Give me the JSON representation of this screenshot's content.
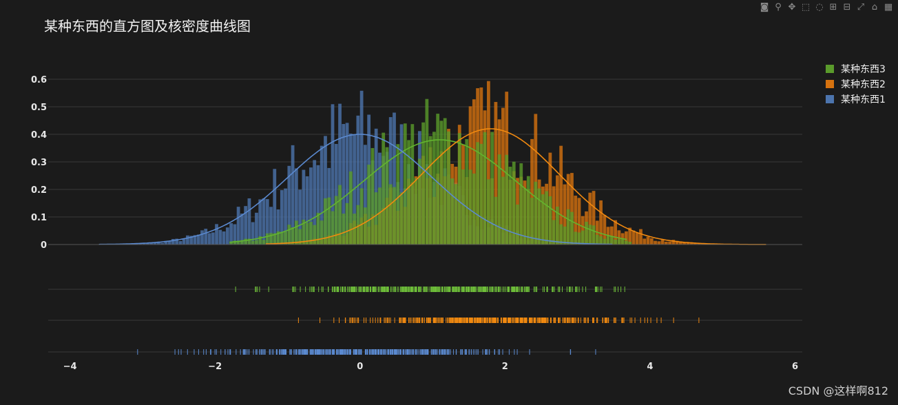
{
  "watermark": "CSDN @这样啊812",
  "toolbar": {
    "icons": [
      "camera-icon",
      "zoom-icon",
      "pan-icon",
      "box-select-icon",
      "lasso-icon",
      "zoom-in-icon",
      "zoom-out-icon",
      "autoscale-icon",
      "home-icon",
      "plotly-logo-icon"
    ]
  },
  "chart_data": {
    "type": "histogram",
    "title": "某种东西的直方图及核密度曲线图",
    "xlim": [
      -4.3,
      6.1
    ],
    "ylim": [
      0,
      0.65
    ],
    "xticks": [
      -4,
      -2,
      0,
      2,
      4,
      6
    ],
    "xtick_labels": [
      "−4",
      "−2",
      "0",
      "2",
      "4",
      "6"
    ],
    "yticks": [
      0,
      0.1,
      0.2,
      0.3,
      0.4,
      0.5,
      0.6
    ],
    "ytick_labels": [
      "0",
      "0.1",
      "0.2",
      "0.3",
      "0.4",
      "0.5",
      "0.6"
    ],
    "grid": true,
    "legend_position": "top-right",
    "series": [
      {
        "name": "某种东西3",
        "color": "#5a9b2b",
        "kde_color": "#62b52e",
        "rug_color": "#6fbf3a",
        "mean": 1.1,
        "sd": 1.05,
        "peak": 0.38,
        "range": [
          -1.8,
          3.7
        ],
        "bin_width": 0.05
      },
      {
        "name": "某种东西2",
        "color": "#d6720f",
        "kde_color": "#f28a10",
        "rug_color": "#f28a10",
        "mean": 1.8,
        "sd": 0.95,
        "peak": 0.42,
        "range": [
          -1.3,
          5.6
        ],
        "bin_width": 0.05
      },
      {
        "name": "某种东西1",
        "color": "#4c74ad",
        "kde_color": "#5b8ad0",
        "rug_color": "#5b8ad0",
        "mean": 0.0,
        "sd": 1.0,
        "peak": 0.4,
        "range": [
          -3.6,
          3.5
        ],
        "bin_width": 0.05
      }
    ]
  }
}
